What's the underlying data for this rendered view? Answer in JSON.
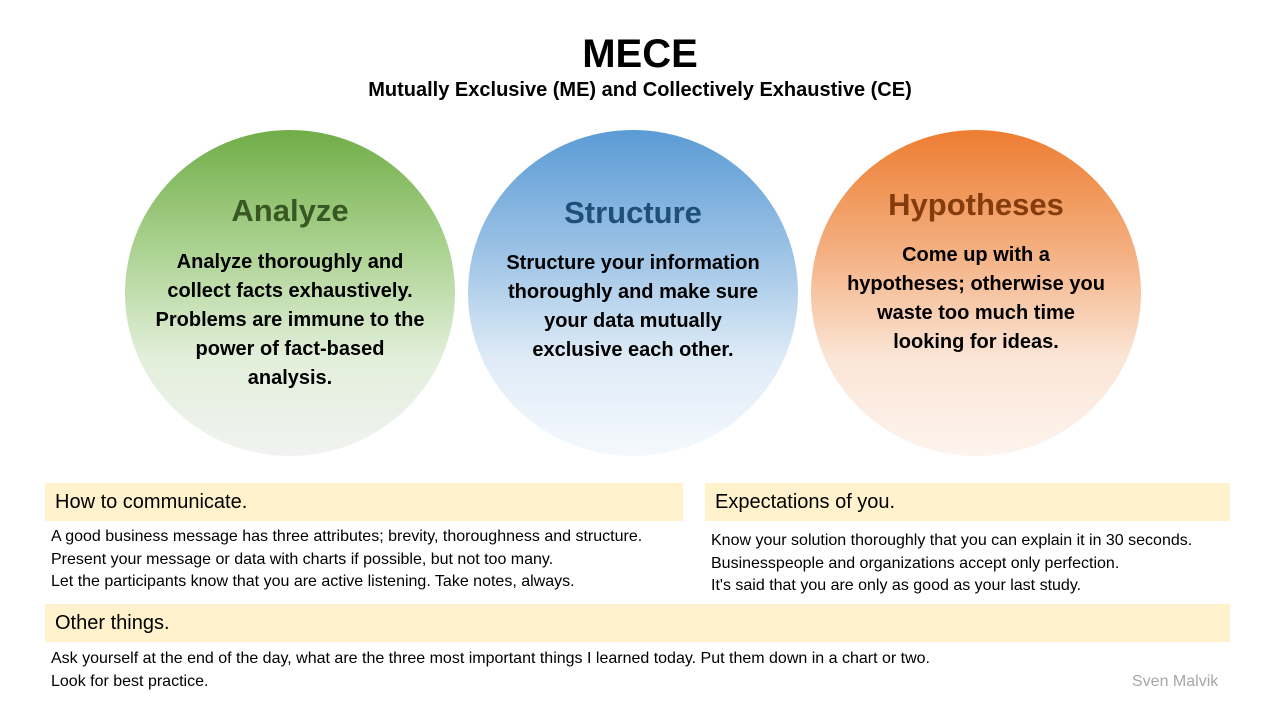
{
  "header": {
    "title": "MECE",
    "subtitle": "Mutually Exclusive (ME) and Collectively Exhaustive (CE)"
  },
  "circles": [
    {
      "title": "Analyze",
      "text": "Analyze thoroughly and collect facts exhaustively. Problems are immune to the power of fact-based analysis.",
      "accent_color": "#70ad47"
    },
    {
      "title": "Structure",
      "text": "Structure your information thoroughly and make sure your data mutually exclusive each other.",
      "accent_color": "#5b9bd5"
    },
    {
      "title": "Hypotheses",
      "text": "Come up with a hypotheses; otherwise you waste too much time looking for ideas.",
      "accent_color": "#ed7d31"
    }
  ],
  "sections": {
    "communicate": {
      "heading": "How to communicate.",
      "lines": [
        "A good business message has three attributes; brevity, thoroughness and structure.",
        "Present your message or data with charts if possible, but not too many.",
        "Let the participants know that you are active listening. Take notes, always."
      ]
    },
    "expectations": {
      "heading": "Expectations of you.",
      "lines": [
        "Know your solution thoroughly that you can explain it in 30 seconds.",
        "Businesspeople and organizations accept only perfection.",
        "It's said that you are only as good as your last study."
      ]
    },
    "other": {
      "heading": "Other things.",
      "lines": [
        "Ask yourself at the end of the day, what are the three most important things I learned today. Put them down in a chart or two.",
        "Look for best practice."
      ]
    }
  },
  "footer": {
    "author": "Sven Malvik"
  },
  "colors": {
    "band_background": "#fff2cc",
    "analyze_title": "#385723",
    "structure_title": "#1f4e79",
    "hypotheses_title": "#843c0c"
  }
}
